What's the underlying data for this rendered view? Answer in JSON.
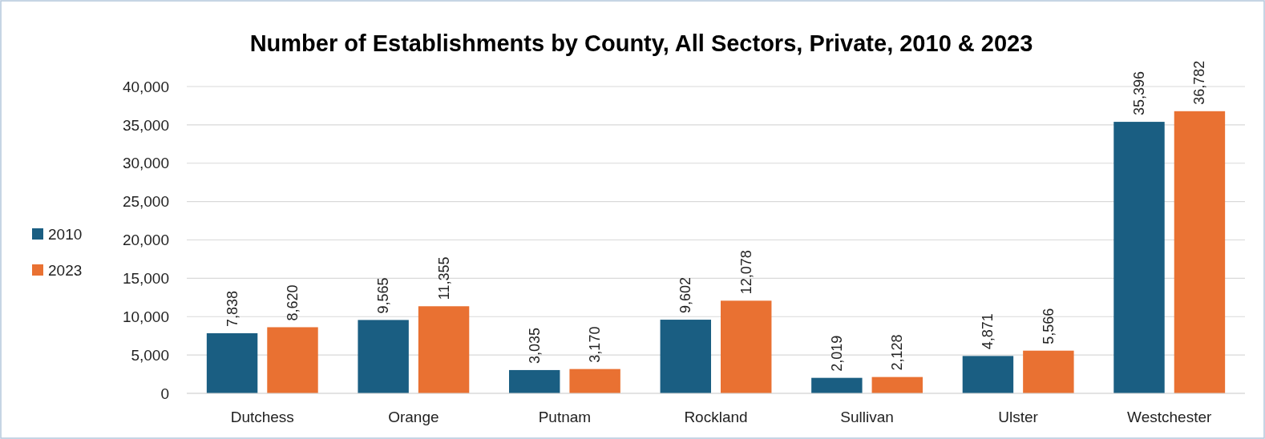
{
  "chart_data": {
    "type": "bar",
    "title": "Number of Establishments by County, All Sectors, Private, 2010 & 2023",
    "categories": [
      "Dutchess",
      "Orange",
      "Putnam",
      "Rockland",
      "Sullivan",
      "Ulster",
      "Westchester"
    ],
    "series": [
      {
        "name": "2010",
        "color": "#1a5e82",
        "values": [
          7838,
          9565,
          3035,
          9602,
          2019,
          4871,
          35396
        ],
        "value_labels": [
          "7,838",
          "9,565",
          "3,035",
          "9,602",
          "2,019",
          "4,871",
          "35,396"
        ]
      },
      {
        "name": "2023",
        "color": "#e97132",
        "values": [
          8620,
          11355,
          3170,
          12078,
          2128,
          5566,
          36782
        ],
        "value_labels": [
          "8,620",
          "11,355",
          "3,170",
          "12,078",
          "2,128",
          "5,566",
          "36,782"
        ]
      }
    ],
    "ylim": [
      0,
      40000
    ],
    "yticks": [
      {
        "value": 0,
        "label": "0"
      },
      {
        "value": 5000,
        "label": "5,000"
      },
      {
        "value": 10000,
        "label": "10,000"
      },
      {
        "value": 15000,
        "label": "15,000"
      },
      {
        "value": 20000,
        "label": "20,000"
      },
      {
        "value": 25000,
        "label": "25,000"
      },
      {
        "value": 30000,
        "label": "30,000"
      },
      {
        "value": 35000,
        "label": "35,000"
      },
      {
        "value": 40000,
        "label": "40,000"
      }
    ],
    "grid": "y",
    "legend": "left"
  }
}
